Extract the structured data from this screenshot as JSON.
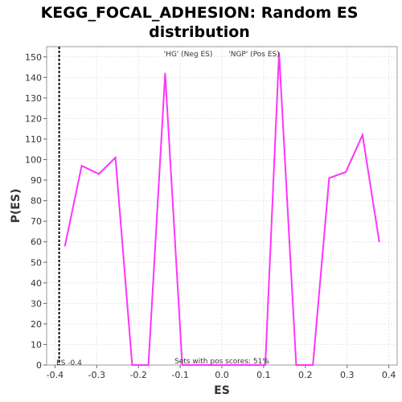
{
  "chart_data": {
    "type": "line",
    "title_line1": "KEGG_FOCAL_ADHESION: Random ES",
    "title_line2": "distribution",
    "xlabel": "ES",
    "ylabel": "P(ES)",
    "xlim": [
      -0.42,
      0.42
    ],
    "ylim": [
      0,
      155
    ],
    "x_ticks": [
      -0.4,
      -0.3,
      -0.2,
      -0.1,
      0.0,
      0.1,
      0.2,
      0.3,
      0.4
    ],
    "x_tick_labels": [
      "-0.4",
      "-0.3",
      "-0.2",
      "-0.1",
      "0.0",
      "0.1",
      "0.2",
      "0.3",
      "0.4"
    ],
    "y_ticks": [
      0,
      10,
      20,
      30,
      40,
      50,
      60,
      70,
      80,
      90,
      100,
      110,
      120,
      130,
      140,
      150
    ],
    "grid": true,
    "series": [
      {
        "color": "#ff33ff",
        "x": [
          -0.376,
          -0.336,
          -0.295,
          -0.255,
          -0.215,
          -0.176,
          -0.136,
          -0.095,
          -0.055,
          -0.015,
          0.025,
          0.065,
          0.104,
          0.137,
          0.178,
          0.218,
          0.257,
          0.297,
          0.337,
          0.377
        ],
        "y": [
          58,
          97,
          93,
          101,
          0,
          0,
          142,
          0,
          0,
          0,
          0,
          0,
          0,
          152,
          0,
          0,
          91,
          94,
          112,
          60
        ]
      }
    ],
    "marker_line": {
      "x": -0.39,
      "label": "ES -0.4"
    },
    "annotations": {
      "neg_label": "'HG' (Neg ES)",
      "neg_color": "#3333cc",
      "pos_label": "'NGP' (Pos ES)",
      "pos_color": "#dd2222",
      "footer": "Sets with pos scores: 51%"
    }
  }
}
